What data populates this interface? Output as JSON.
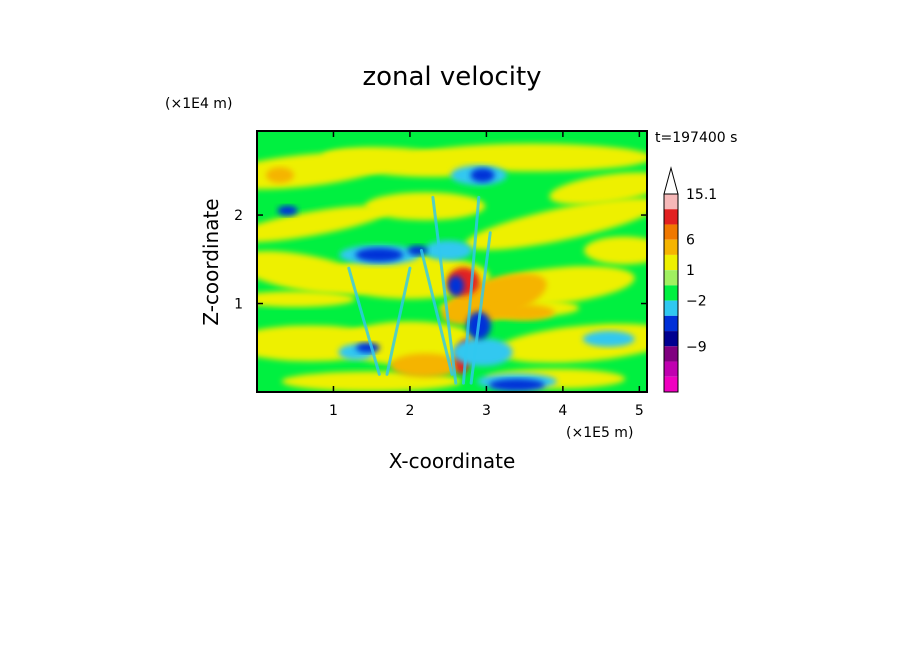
{
  "chart_data": {
    "type": "heatmap",
    "title": "zonal velocity",
    "xlabel": "X-coordinate",
    "ylabel": "Z-coordinate",
    "x_unit": "(×1E5 m)",
    "y_unit": "(×1E4 m)",
    "time_label": "t=197400 s",
    "xlim": [
      0,
      5.1
    ],
    "ylim": [
      0,
      2.95
    ],
    "x_ticks": [
      "1",
      "2",
      "3",
      "4",
      "5"
    ],
    "y_ticks": [
      "1",
      "2"
    ],
    "colorbar": {
      "labels": [
        "15.1",
        "6",
        "1",
        "−2",
        "−9"
      ],
      "colors": [
        "#ffffff",
        "#f6b8b8",
        "#e22020",
        "#f07800",
        "#f5b400",
        "#eef000",
        "#a0f060",
        "#00f040",
        "#30c8f0",
        "#0030d8",
        "#000090",
        "#800080",
        "#c000b0",
        "#f000c0"
      ]
    },
    "colors": {
      "background_field": "#00f040",
      "positive_weak": "#eef000",
      "positive_mid": "#f5b400",
      "positive_strong": "#e22020",
      "negative_weak": "#30c8f0",
      "negative_strong": "#0030d8"
    }
  }
}
